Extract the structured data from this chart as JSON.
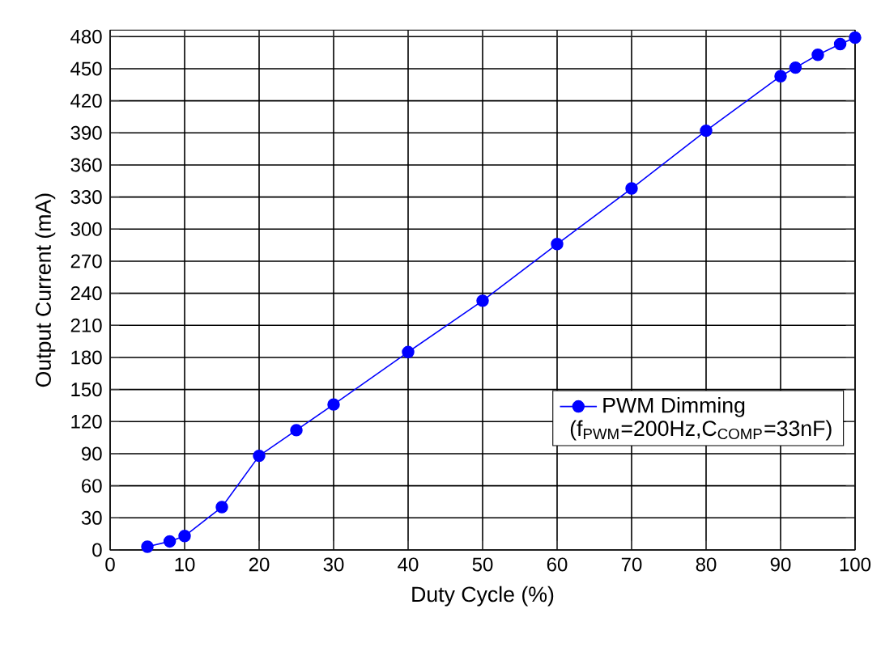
{
  "chart_data": {
    "type": "line",
    "xlabel": "Duty Cycle (%)",
    "ylabel": "Output Current (mA)",
    "x": [
      5,
      8,
      10,
      15,
      20,
      25,
      30,
      40,
      50,
      60,
      70,
      80,
      90,
      92,
      95,
      98,
      100
    ],
    "series": [
      {
        "name": "PWM Dimming",
        "color": "#0000ff",
        "values": [
          3,
          8,
          13,
          40,
          88,
          112,
          136,
          185,
          233,
          286,
          338,
          392,
          443,
          451,
          463,
          473,
          479
        ]
      }
    ],
    "xlim": [
      0,
      100
    ],
    "ylim": [
      0,
      486
    ],
    "xticks": [
      0,
      10,
      20,
      30,
      40,
      50,
      60,
      70,
      80,
      90,
      100
    ],
    "yticks": [
      0,
      30,
      60,
      90,
      120,
      150,
      180,
      210,
      240,
      270,
      300,
      330,
      360,
      390,
      420,
      450,
      480
    ],
    "grid": true,
    "legend": "bottom right",
    "marker": "circle",
    "line_style": "solid",
    "annotations": [
      "(f$_{PWM}$=200Hz,C$_{COMP}$=33nF)"
    ]
  }
}
